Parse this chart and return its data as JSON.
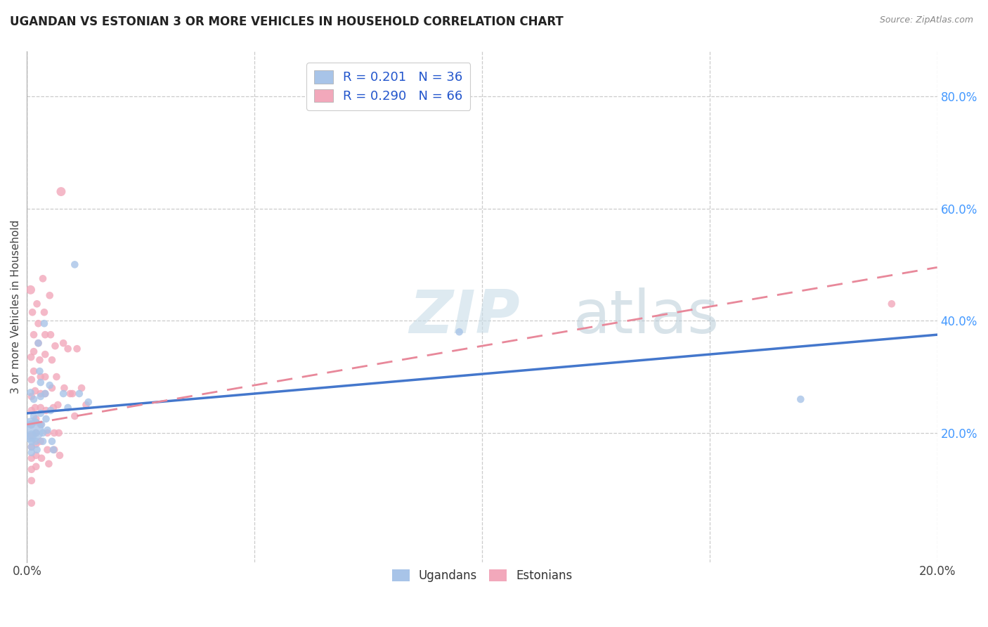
{
  "title": "UGANDAN VS ESTONIAN 3 OR MORE VEHICLES IN HOUSEHOLD CORRELATION CHART",
  "source": "Source: ZipAtlas.com",
  "ylabel": "3 or more Vehicles in Household",
  "xlim": [
    0.0,
    0.2
  ],
  "ylim": [
    -0.03,
    0.88
  ],
  "xticks": [
    0.0,
    0.05,
    0.1,
    0.15,
    0.2
  ],
  "xticklabels": [
    "0.0%",
    "",
    "",
    "",
    "20.0%"
  ],
  "yticks_right": [
    0.2,
    0.4,
    0.6,
    0.8
  ],
  "ytick_labels_right": [
    "20.0%",
    "40.0%",
    "60.0%",
    "80.0%"
  ],
  "ugandan_color": "#A8C4E8",
  "estonian_color": "#F2A8BB",
  "ugandan_line_color": "#4477CC",
  "estonian_line_color": "#E8889A",
  "ugandan_R": 0.201,
  "ugandan_N": 36,
  "estonian_R": 0.29,
  "estonian_N": 66,
  "ugandan_points": [
    [
      0.0008,
      0.272,
      18
    ],
    [
      0.0009,
      0.215,
      20
    ],
    [
      0.001,
      0.205,
      60
    ],
    [
      0.001,
      0.195,
      25
    ],
    [
      0.001,
      0.185,
      18
    ],
    [
      0.001,
      0.175,
      18
    ],
    [
      0.001,
      0.165,
      18
    ],
    [
      0.0015,
      0.26,
      18
    ],
    [
      0.0015,
      0.23,
      18
    ],
    [
      0.0018,
      0.22,
      18
    ],
    [
      0.002,
      0.2,
      18
    ],
    [
      0.002,
      0.185,
      18
    ],
    [
      0.0022,
      0.17,
      18
    ],
    [
      0.0025,
      0.36,
      18
    ],
    [
      0.0028,
      0.31,
      18
    ],
    [
      0.003,
      0.29,
      18
    ],
    [
      0.003,
      0.265,
      18
    ],
    [
      0.003,
      0.235,
      18
    ],
    [
      0.0032,
      0.215,
      18
    ],
    [
      0.0035,
      0.2,
      18
    ],
    [
      0.0035,
      0.185,
      18
    ],
    [
      0.0038,
      0.395,
      18
    ],
    [
      0.004,
      0.27,
      18
    ],
    [
      0.0042,
      0.225,
      18
    ],
    [
      0.0045,
      0.205,
      18
    ],
    [
      0.005,
      0.285,
      18
    ],
    [
      0.0052,
      0.24,
      18
    ],
    [
      0.0055,
      0.185,
      18
    ],
    [
      0.0058,
      0.17,
      18
    ],
    [
      0.008,
      0.27,
      18
    ],
    [
      0.009,
      0.245,
      18
    ],
    [
      0.0105,
      0.5,
      18
    ],
    [
      0.0115,
      0.27,
      18
    ],
    [
      0.0135,
      0.255,
      18
    ],
    [
      0.095,
      0.38,
      18
    ],
    [
      0.17,
      0.26,
      18
    ]
  ],
  "estonian_points": [
    [
      0.0008,
      0.455,
      22
    ],
    [
      0.0009,
      0.335,
      18
    ],
    [
      0.001,
      0.295,
      18
    ],
    [
      0.001,
      0.265,
      18
    ],
    [
      0.001,
      0.24,
      18
    ],
    [
      0.001,
      0.215,
      18
    ],
    [
      0.001,
      0.195,
      18
    ],
    [
      0.001,
      0.175,
      18
    ],
    [
      0.001,
      0.155,
      18
    ],
    [
      0.001,
      0.135,
      18
    ],
    [
      0.001,
      0.115,
      18
    ],
    [
      0.001,
      0.075,
      18
    ],
    [
      0.0012,
      0.415,
      18
    ],
    [
      0.0015,
      0.375,
      18
    ],
    [
      0.0015,
      0.345,
      18
    ],
    [
      0.0015,
      0.31,
      18
    ],
    [
      0.0018,
      0.275,
      18
    ],
    [
      0.0018,
      0.245,
      18
    ],
    [
      0.002,
      0.225,
      18
    ],
    [
      0.002,
      0.2,
      18
    ],
    [
      0.002,
      0.18,
      18
    ],
    [
      0.002,
      0.16,
      18
    ],
    [
      0.002,
      0.14,
      18
    ],
    [
      0.0022,
      0.43,
      18
    ],
    [
      0.0025,
      0.395,
      18
    ],
    [
      0.0025,
      0.36,
      18
    ],
    [
      0.0028,
      0.33,
      18
    ],
    [
      0.003,
      0.3,
      18
    ],
    [
      0.003,
      0.27,
      18
    ],
    [
      0.003,
      0.245,
      18
    ],
    [
      0.003,
      0.215,
      18
    ],
    [
      0.003,
      0.185,
      18
    ],
    [
      0.0032,
      0.155,
      18
    ],
    [
      0.0035,
      0.475,
      18
    ],
    [
      0.0038,
      0.415,
      18
    ],
    [
      0.004,
      0.375,
      18
    ],
    [
      0.004,
      0.34,
      18
    ],
    [
      0.004,
      0.3,
      18
    ],
    [
      0.004,
      0.27,
      18
    ],
    [
      0.0042,
      0.24,
      18
    ],
    [
      0.0045,
      0.2,
      18
    ],
    [
      0.0045,
      0.17,
      18
    ],
    [
      0.0048,
      0.145,
      18
    ],
    [
      0.005,
      0.445,
      18
    ],
    [
      0.0052,
      0.375,
      18
    ],
    [
      0.0055,
      0.33,
      18
    ],
    [
      0.0055,
      0.28,
      18
    ],
    [
      0.0058,
      0.245,
      18
    ],
    [
      0.006,
      0.2,
      18
    ],
    [
      0.006,
      0.17,
      18
    ],
    [
      0.0062,
      0.355,
      18
    ],
    [
      0.0065,
      0.3,
      18
    ],
    [
      0.0068,
      0.25,
      18
    ],
    [
      0.007,
      0.2,
      18
    ],
    [
      0.0072,
      0.16,
      18
    ],
    [
      0.0075,
      0.63,
      22
    ],
    [
      0.008,
      0.36,
      18
    ],
    [
      0.0082,
      0.28,
      18
    ],
    [
      0.009,
      0.35,
      18
    ],
    [
      0.0095,
      0.27,
      18
    ],
    [
      0.01,
      0.27,
      18
    ],
    [
      0.0105,
      0.23,
      18
    ],
    [
      0.011,
      0.35,
      18
    ],
    [
      0.012,
      0.28,
      18
    ],
    [
      0.013,
      0.25,
      18
    ],
    [
      0.19,
      0.43,
      18
    ]
  ],
  "ug_line_intercept": 0.235,
  "ug_line_slope": 0.7,
  "es_line_intercept": 0.215,
  "es_line_slope": 1.4
}
